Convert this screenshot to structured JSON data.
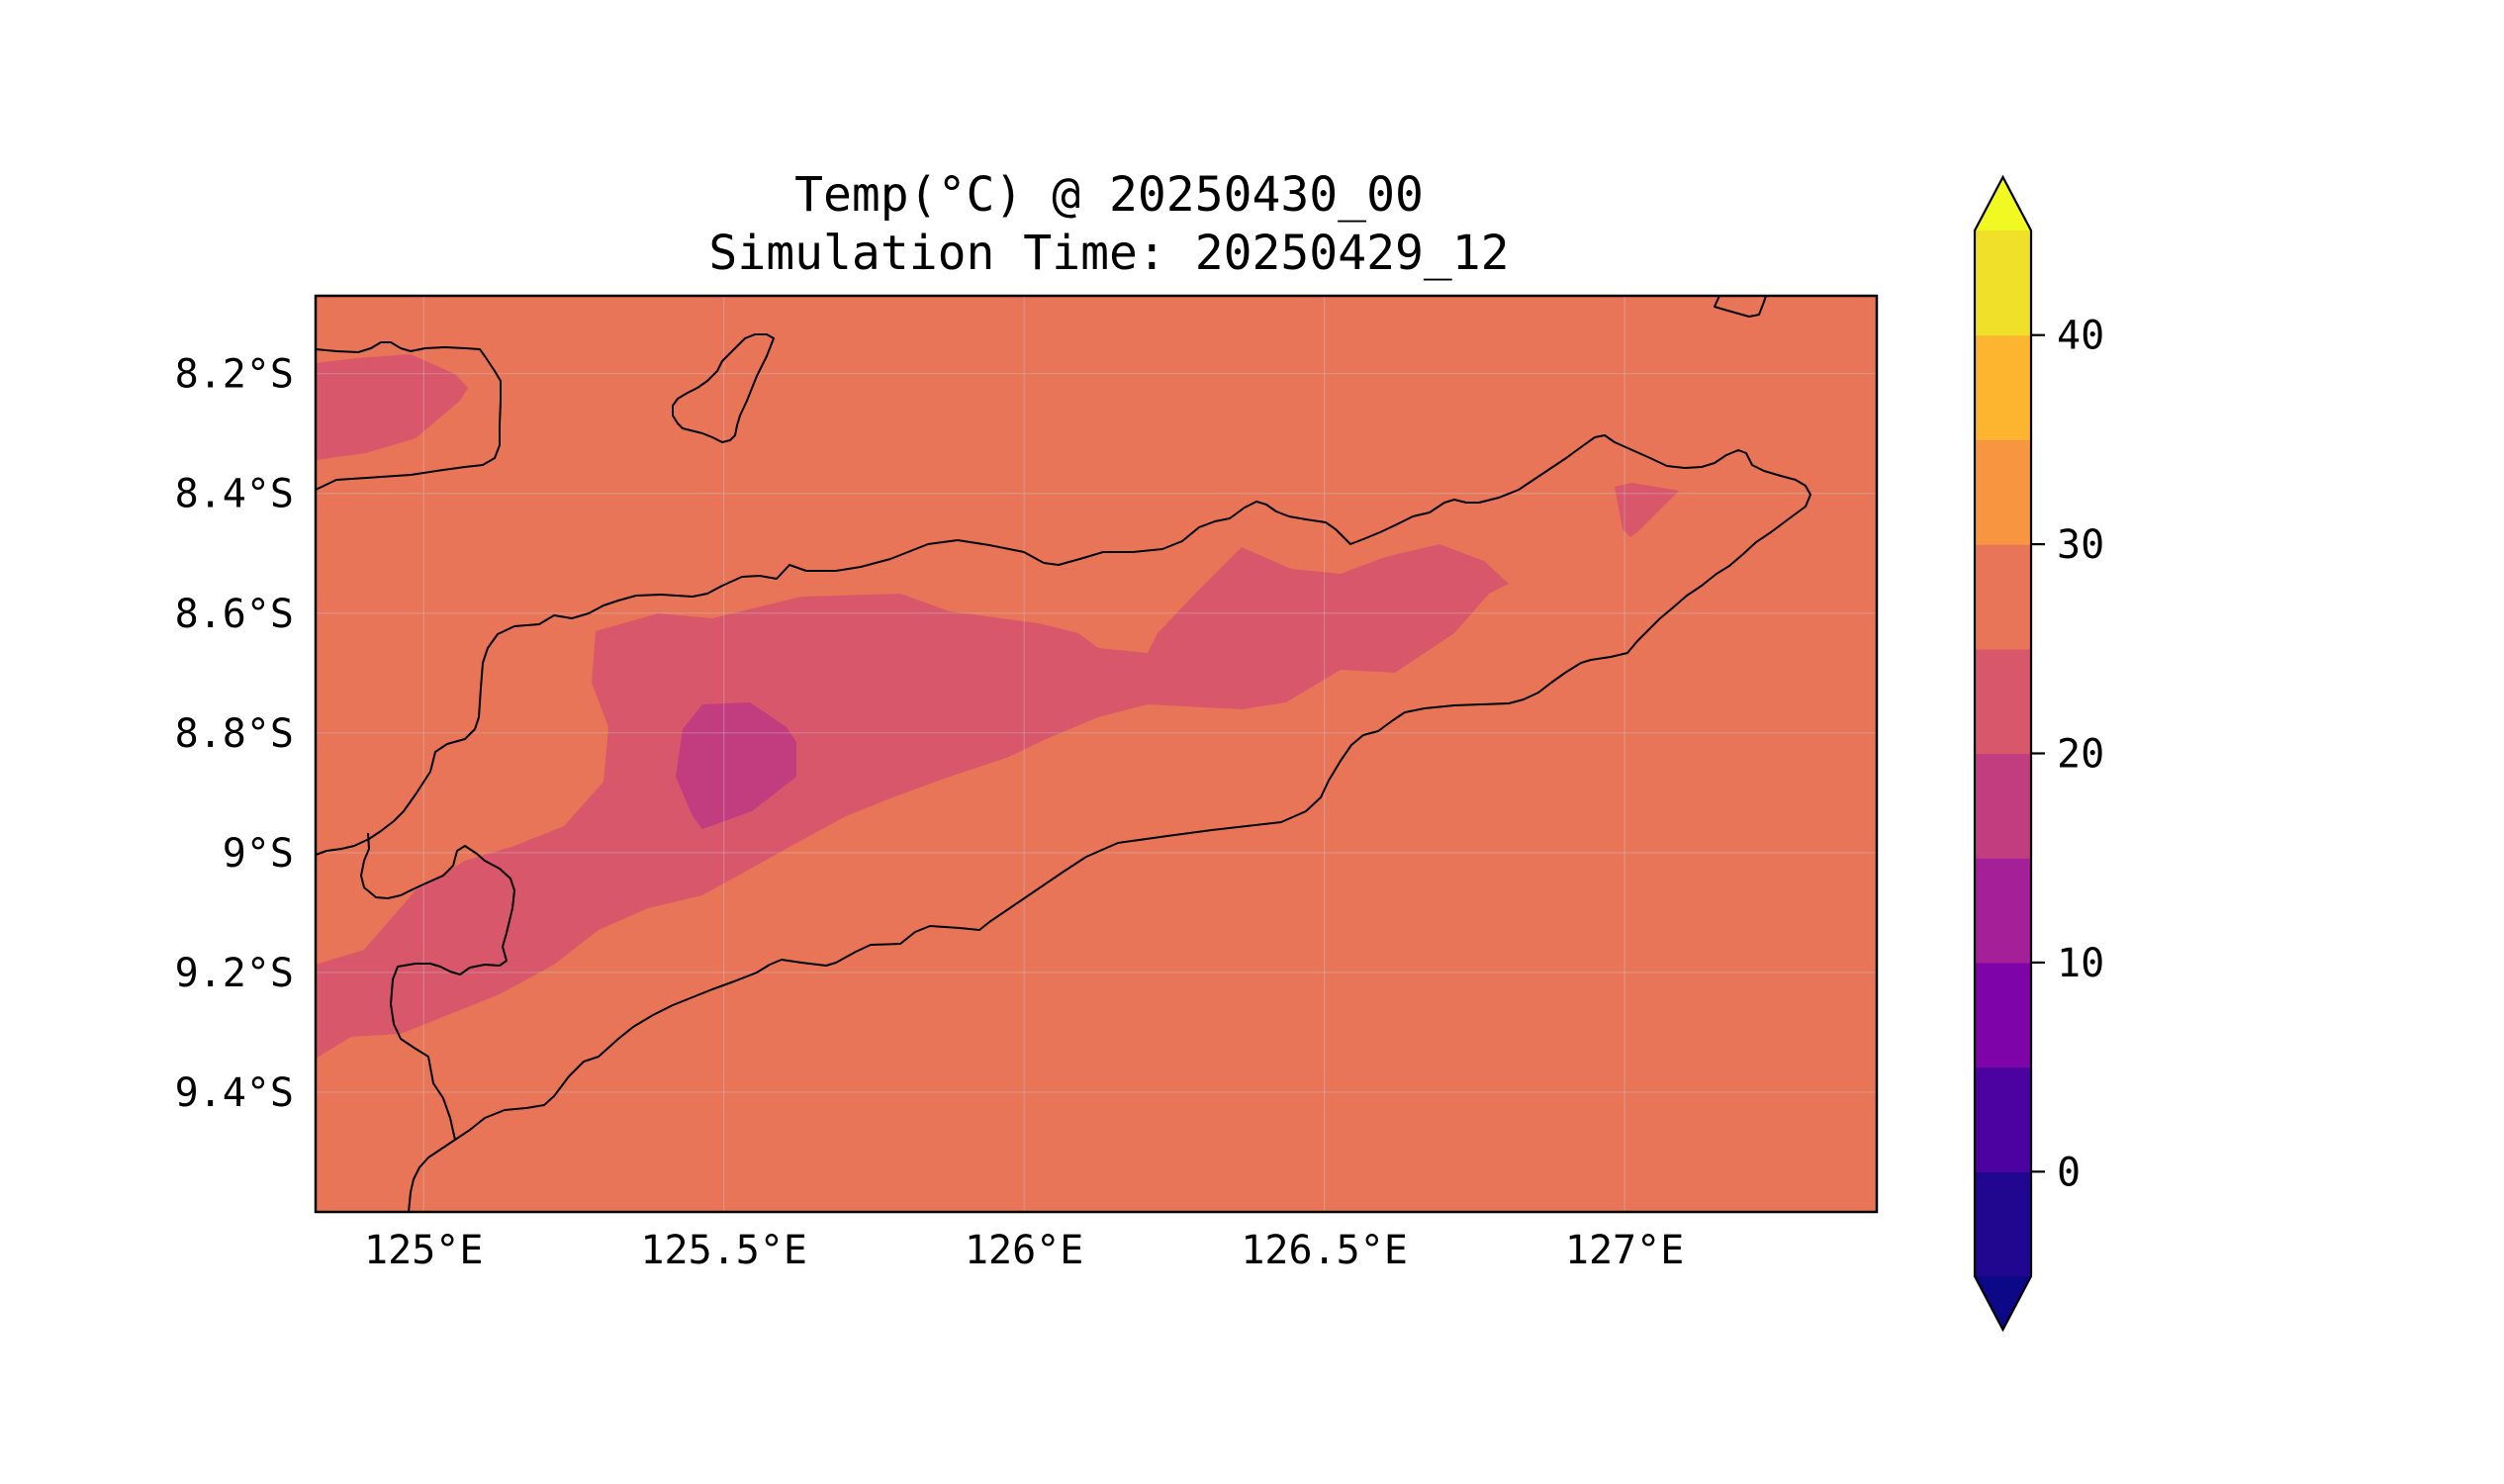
{
  "figure": {
    "title_line1": "Temp(°C) @ 20250430_00",
    "title_line2": "Simulation Time: 20250429_12"
  },
  "map": {
    "lon_range": [
      124.82,
      127.42
    ],
    "lat_range": [
      -9.6,
      -8.07
    ],
    "x_ticks": [
      {
        "value": 125.0,
        "label": "125°E"
      },
      {
        "value": 125.5,
        "label": "125.5°E"
      },
      {
        "value": 126.0,
        "label": "126°E"
      },
      {
        "value": 126.5,
        "label": "126.5°E"
      },
      {
        "value": 127.0,
        "label": "127°E"
      }
    ],
    "y_ticks": [
      {
        "value": -8.2,
        "label": "8.2°S"
      },
      {
        "value": -8.4,
        "label": "8.4°S"
      },
      {
        "value": -8.6,
        "label": "8.6°S"
      },
      {
        "value": -8.8,
        "label": "8.8°S"
      },
      {
        "value": -9.0,
        "label": "9°S"
      },
      {
        "value": -9.2,
        "label": "9.2°S"
      },
      {
        "value": -9.4,
        "label": "9.4°S"
      }
    ],
    "background_level_color": "#e97558",
    "field_levels_shown": [
      "25–30",
      "20–25",
      "15–20"
    ]
  },
  "colorbar": {
    "levels": [
      -5,
      0,
      5,
      10,
      15,
      20,
      25,
      30,
      35,
      40,
      45
    ],
    "colors": [
      "#21068f",
      "#4c02a1",
      "#7e03a8",
      "#a51f99",
      "#c23d80",
      "#d8576b",
      "#e97558",
      "#f89540",
      "#fdb42f",
      "#f0e02a"
    ],
    "extend_min_color": "#0d0887",
    "extend_max_color": "#f0f921",
    "ticks": [
      {
        "value": 0,
        "label": "0"
      },
      {
        "value": 10,
        "label": "10"
      },
      {
        "value": 20,
        "label": "20"
      },
      {
        "value": 30,
        "label": "30"
      },
      {
        "value": 40,
        "label": "40"
      }
    ]
  }
}
